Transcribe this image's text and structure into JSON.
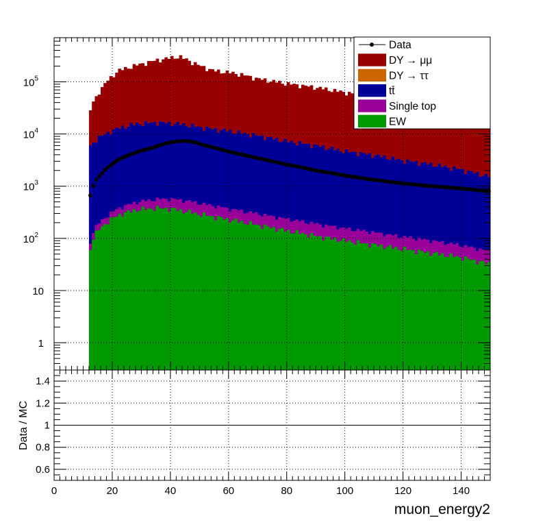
{
  "chart_data": {
    "type": "bar",
    "subtype": "stacked-histogram-with-data-points",
    "xlabel": "muon_energy2",
    "x_range": [
      0,
      150
    ],
    "bin_width": 1,
    "first_filled_bin": 12,
    "x_ticks": [
      "0",
      "20",
      "40",
      "60",
      "80",
      "100",
      "120",
      "140"
    ],
    "main_panel": {
      "y_scale": "log",
      "ylim": [
        0.3,
        700000
      ],
      "y_ticks": [
        {
          "value": 1,
          "label": "1",
          "exp": ""
        },
        {
          "value": 10,
          "label": "10",
          "exp": ""
        },
        {
          "value": 100,
          "label": "10",
          "exp": "2"
        },
        {
          "value": 1000,
          "label": "10",
          "exp": "3"
        },
        {
          "value": 10000,
          "label": "10",
          "exp": "4"
        },
        {
          "value": 100000,
          "label": "10",
          "exp": "5"
        }
      ],
      "grid": "dotted"
    },
    "ratio_panel": {
      "ylabel": "Data / MC",
      "ylim": [
        0.5,
        1.5
      ],
      "y_ticks": [
        "0.6",
        "0.8",
        "1",
        "1.2",
        "1.4"
      ],
      "reference_line": 1,
      "grid": "dotted"
    },
    "legend": {
      "placement": "top-right",
      "entries": [
        {
          "label": "Data",
          "style": "marker"
        },
        {
          "label": "DY → μμ",
          "style": "box",
          "color": "#990000"
        },
        {
          "label": "DY → ττ",
          "style": "box",
          "color": "#cc6600"
        },
        {
          "label": "tt̄",
          "style": "box",
          "color": "#000099"
        },
        {
          "label": "Single top",
          "style": "box",
          "color": "#990099"
        },
        {
          "label": "EW",
          "style": "box",
          "color": "#009900"
        }
      ]
    },
    "series": [
      {
        "name": "EW",
        "color": "#009900",
        "role": "stack",
        "points": [
          [
            12,
            45
          ],
          [
            13,
            90
          ],
          [
            15,
            140
          ],
          [
            18,
            200
          ],
          [
            22,
            280
          ],
          [
            28,
            350
          ],
          [
            35,
            380
          ],
          [
            40,
            370
          ],
          [
            45,
            330
          ],
          [
            50,
            290
          ],
          [
            60,
            230
          ],
          [
            70,
            180
          ],
          [
            80,
            140
          ],
          [
            90,
            110
          ],
          [
            100,
            90
          ],
          [
            110,
            75
          ],
          [
            120,
            62
          ],
          [
            130,
            52
          ],
          [
            140,
            43
          ],
          [
            149,
            33
          ]
        ]
      },
      {
        "name": "Single top",
        "color": "#990099",
        "role": "stack",
        "points": [
          [
            12,
            18
          ],
          [
            13,
            28
          ],
          [
            15,
            45
          ],
          [
            18,
            65
          ],
          [
            22,
            95
          ],
          [
            28,
            140
          ],
          [
            35,
            180
          ],
          [
            40,
            200
          ],
          [
            45,
            200
          ],
          [
            50,
            180
          ],
          [
            60,
            140
          ],
          [
            70,
            115
          ],
          [
            80,
            95
          ],
          [
            90,
            80
          ],
          [
            100,
            65
          ],
          [
            110,
            55
          ],
          [
            120,
            45
          ],
          [
            130,
            38
          ],
          [
            140,
            30
          ],
          [
            149,
            25
          ]
        ]
      },
      {
        "name": "tt̄",
        "color": "#000099",
        "role": "stack",
        "points": [
          [
            12,
            5000
          ],
          [
            13,
            6500
          ],
          [
            15,
            8000
          ],
          [
            18,
            10000
          ],
          [
            22,
            12500
          ],
          [
            28,
            15000
          ],
          [
            35,
            16000
          ],
          [
            40,
            15500
          ],
          [
            45,
            14500
          ],
          [
            50,
            13000
          ],
          [
            60,
            11000
          ],
          [
            70,
            9000
          ],
          [
            80,
            7000
          ],
          [
            90,
            5800
          ],
          [
            100,
            4500
          ],
          [
            110,
            3800
          ],
          [
            120,
            3000
          ],
          [
            130,
            2500
          ],
          [
            140,
            2000
          ],
          [
            149,
            1500
          ]
        ]
      },
      {
        "name": "DY → ττ",
        "color": "#cc6600",
        "role": "stack",
        "points": [
          [
            12,
            1
          ],
          [
            40,
            1
          ],
          [
            80,
            1
          ],
          [
            149,
            1
          ]
        ]
      },
      {
        "name": "DY → μμ",
        "color": "#990000",
        "role": "stack",
        "points": [
          [
            12,
            17000
          ],
          [
            13,
            30000
          ],
          [
            15,
            50000
          ],
          [
            18,
            90000
          ],
          [
            22,
            150000
          ],
          [
            28,
            190000
          ],
          [
            35,
            240000
          ],
          [
            40,
            270000
          ],
          [
            43,
            290000
          ],
          [
            45,
            260000
          ],
          [
            50,
            190000
          ],
          [
            55,
            150000
          ],
          [
            60,
            140000
          ],
          [
            65,
            125000
          ],
          [
            70,
            105000
          ],
          [
            80,
            85000
          ],
          [
            90,
            72000
          ],
          [
            100,
            58000
          ],
          [
            110,
            47000
          ],
          [
            120,
            39000
          ],
          [
            130,
            30000
          ],
          [
            140,
            24000
          ],
          [
            149,
            20000
          ]
        ]
      },
      {
        "name": "Data",
        "color": "#000000",
        "role": "points",
        "points": [
          [
            12,
            520
          ],
          [
            13,
            850
          ],
          [
            14,
            1200
          ],
          [
            15,
            1450
          ],
          [
            16,
            1650
          ],
          [
            17,
            1900
          ],
          [
            18,
            2200
          ],
          [
            20,
            2650
          ],
          [
            22,
            3200
          ],
          [
            24,
            3600
          ],
          [
            26,
            4000
          ],
          [
            28,
            4400
          ],
          [
            30,
            4800
          ],
          [
            32,
            5100
          ],
          [
            34,
            5500
          ],
          [
            36,
            6000
          ],
          [
            38,
            6500
          ],
          [
            40,
            6900
          ],
          [
            42,
            7200
          ],
          [
            44,
            7350
          ],
          [
            46,
            7300
          ],
          [
            48,
            7000
          ],
          [
            50,
            6500
          ],
          [
            52,
            6000
          ],
          [
            55,
            5500
          ],
          [
            60,
            4600
          ],
          [
            65,
            4000
          ],
          [
            70,
            3450
          ],
          [
            75,
            3000
          ],
          [
            80,
            2600
          ],
          [
            85,
            2300
          ],
          [
            90,
            2000
          ],
          [
            95,
            1800
          ],
          [
            100,
            1600
          ],
          [
            105,
            1450
          ],
          [
            110,
            1320
          ],
          [
            115,
            1220
          ],
          [
            120,
            1130
          ],
          [
            125,
            1060
          ],
          [
            130,
            1000
          ],
          [
            135,
            950
          ],
          [
            140,
            900
          ],
          [
            145,
            850
          ],
          [
            149,
            800
          ]
        ]
      }
    ]
  }
}
